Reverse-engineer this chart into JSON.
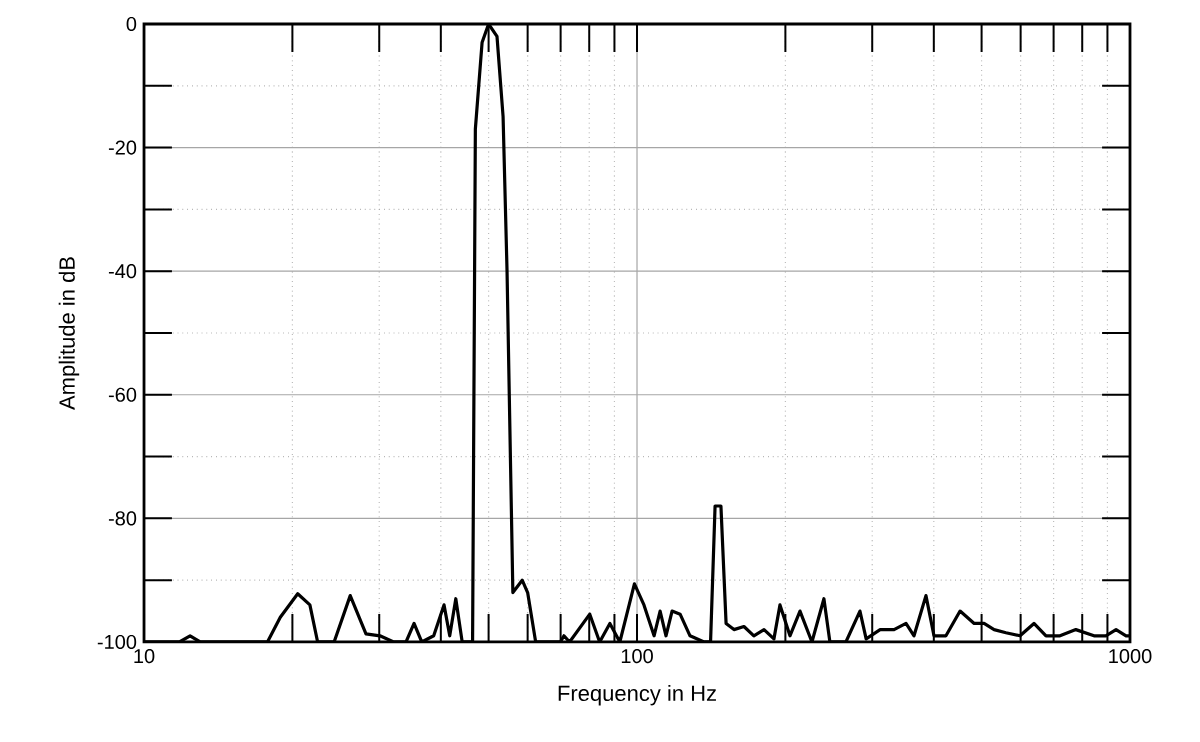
{
  "chart_data": {
    "type": "line",
    "xlabel": "Frequency in Hz",
    "ylabel": "Amplitude in dB",
    "log": "x",
    "grid": true,
    "marker": "none",
    "line_style": "solid",
    "xlim": [
      10,
      1000
    ],
    "ylim": [
      -100,
      0
    ],
    "xticks": [
      10,
      {
        "value": 20,
        "label": null
      },
      {
        "value": 30,
        "label": null
      },
      {
        "value": 40,
        "label": null
      },
      {
        "value": 50,
        "label": null
      },
      {
        "value": 60,
        "label": null
      },
      {
        "value": 70,
        "label": null
      },
      {
        "value": 80,
        "label": null
      },
      {
        "value": 90,
        "label": null
      },
      100,
      {
        "value": 200,
        "label": null
      },
      {
        "value": 300,
        "label": null
      },
      {
        "value": 400,
        "label": null
      },
      {
        "value": 500,
        "label": null
      },
      {
        "value": 600,
        "label": null
      },
      {
        "value": 700,
        "label": null
      },
      {
        "value": 800,
        "label": null
      },
      {
        "value": 900,
        "label": null
      },
      1000
    ],
    "yticks": [
      -100,
      {
        "value": -90,
        "label": null
      },
      -80,
      {
        "value": -70,
        "label": null
      },
      -60,
      {
        "value": -50,
        "label": null
      },
      -40,
      {
        "value": -30,
        "label": null
      },
      -20,
      {
        "value": -10,
        "label": null
      },
      0
    ],
    "series": [
      {
        "color": "#000000",
        "x": [
          10,
          11.8,
          12.4,
          13,
          17.8,
          18.9,
          20.5,
          21.7,
          22.5,
          24.3,
          26.2,
          28.2,
          30.1,
          32.1,
          34,
          35.3,
          36.6,
          38.7,
          40.6,
          41.7,
          42.9,
          44.2,
          46.4,
          47,
          48.5,
          50,
          52,
          53.5,
          54.5,
          56,
          58.5,
          60,
          62.3,
          69.9,
          71.1,
          73,
          80.2,
          84,
          88.1,
          92.3,
          98.8,
          103.3,
          108.3,
          111.4,
          114.5,
          117.8,
          122.3,
          128.1,
          136.8,
          141,
          144,
          148,
          151.6,
          157.3,
          164.8,
          172.6,
          181,
          189.6,
          195,
          204.3,
          214.1,
          226.4,
          239.4,
          246.2,
          265.3,
          283.3,
          291.6,
          311.3,
          332.2,
          351.3,
          364.7,
          385.6,
          400.3,
          423.3,
          452.2,
          483,
          505.9,
          530.1,
          560.3,
          598.4,
          638.6,
          675.5,
          721.1,
          776.6,
          845.3,
          893.4,
          936.9,
          981.7,
          1000
        ],
        "values": [
          -100,
          -100,
          -99,
          -100,
          -100,
          -96,
          -92.2,
          -94,
          -100,
          -100,
          -92.5,
          -98.7,
          -99,
          -100,
          -100,
          -97,
          -100,
          -99,
          -94,
          -99,
          -93,
          -100,
          -100,
          -17,
          -3,
          0,
          -2,
          -15,
          -40,
          -92,
          -90,
          -92,
          -100,
          -100,
          -99,
          -100,
          -95.5,
          -100,
          -97,
          -100,
          -90.6,
          -94,
          -99,
          -95,
          -99,
          -95,
          -95.5,
          -99,
          -100,
          -100,
          -78,
          -78,
          -97,
          -98,
          -97.5,
          -99,
          -98,
          -99.5,
          -94,
          -99,
          -95,
          -100,
          -93,
          -100,
          -100,
          -95,
          -99.5,
          -98,
          -98,
          -97,
          -99,
          -92.5,
          -99,
          -99,
          -95,
          -97,
          -97,
          -98,
          -98.5,
          -99,
          -97,
          -99,
          -99,
          -98,
          -99,
          -99,
          -98,
          -99,
          -99
        ]
      }
    ]
  }
}
